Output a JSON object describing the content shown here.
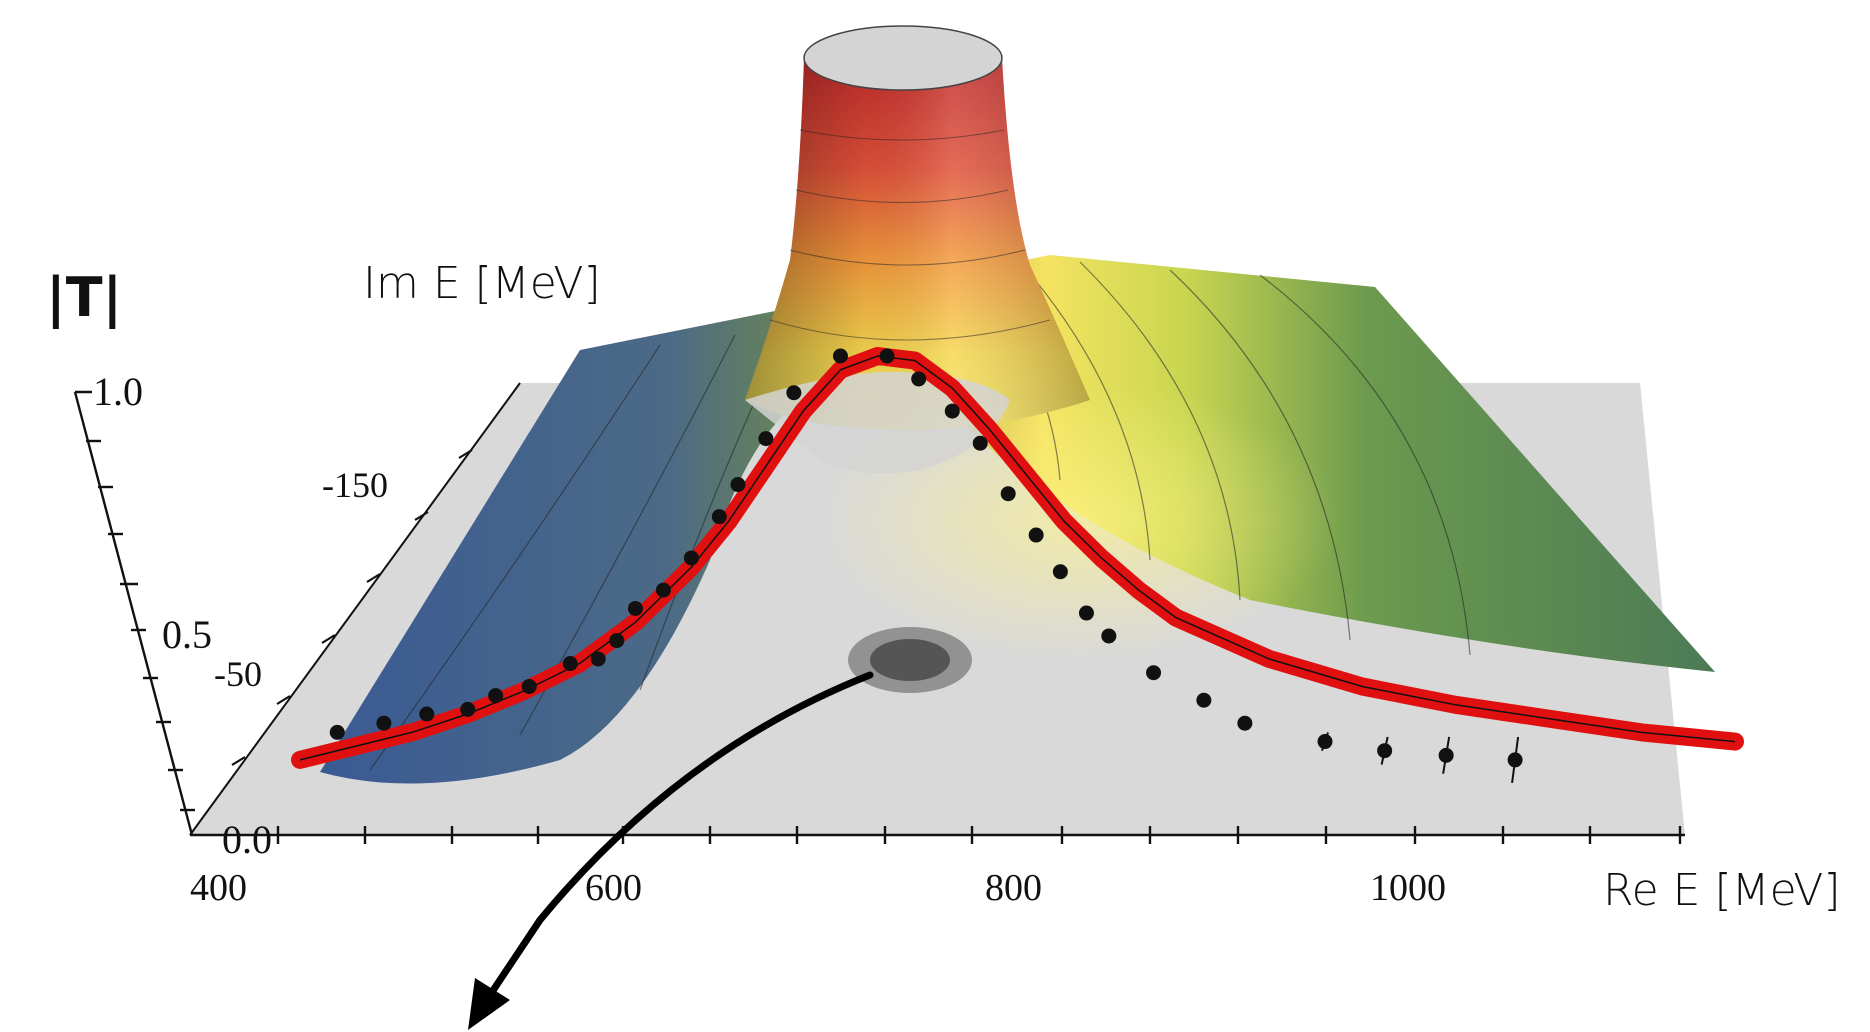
{
  "chart_data": {
    "type": "scatter",
    "title": "",
    "zlabel": "|T|",
    "xlabel": "Re E [MeV]",
    "ylabel": "Im E [MeV]",
    "x_ticks": [
      "400",
      "600",
      "800",
      "1000"
    ],
    "y_ticks": [
      "-150",
      "-50"
    ],
    "z_ticks": [
      "1.0",
      "0.5",
      "0.0"
    ],
    "xlim": [
      400,
      1200
    ],
    "ylim": [
      -200,
      0
    ],
    "zlim": [
      0,
      1
    ],
    "pole": {
      "re": 763,
      "im": -72
    },
    "series": [
      {
        "kind": "data_points",
        "x": [
          450,
          475,
          498,
          520,
          535,
          553,
          575,
          590,
          600,
          610,
          625,
          640,
          655,
          665,
          680,
          695,
          720,
          745,
          762,
          780,
          795,
          810,
          825,
          838,
          852,
          864,
          888,
          915,
          937,
          980,
          1012,
          1045,
          1082
        ],
        "y": [
          0.18,
          0.2,
          0.22,
          0.23,
          0.26,
          0.28,
          0.33,
          0.34,
          0.38,
          0.45,
          0.49,
          0.56,
          0.65,
          0.72,
          0.82,
          0.92,
          1.0,
          1.0,
          0.95,
          0.88,
          0.81,
          0.7,
          0.61,
          0.53,
          0.44,
          0.39,
          0.31,
          0.25,
          0.2,
          0.16,
          0.14,
          0.13,
          0.12
        ],
        "err": [
          0.01,
          0.01,
          0.01,
          0.01,
          0.01,
          0.01,
          0.01,
          0.01,
          0.01,
          0.01,
          0.01,
          0.01,
          0.01,
          0.01,
          0.01,
          0.01,
          0.01,
          0.01,
          0.01,
          0.01,
          0.01,
          0.01,
          0.01,
          0.01,
          0.01,
          0.01,
          0.01,
          0.01,
          0.01,
          0.02,
          0.03,
          0.04,
          0.05
        ]
      },
      {
        "kind": "fit_curve",
        "x": [
          430,
          460,
          490,
          520,
          550,
          580,
          610,
          640,
          660,
          680,
          700,
          720,
          740,
          760,
          780,
          800,
          820,
          840,
          860,
          880,
          900,
          950,
          1000,
          1050,
          1100,
          1150,
          1200
        ],
        "y": [
          0.12,
          0.15,
          0.18,
          0.22,
          0.27,
          0.33,
          0.42,
          0.54,
          0.64,
          0.76,
          0.88,
          0.97,
          1.0,
          0.99,
          0.93,
          0.84,
          0.74,
          0.64,
          0.56,
          0.49,
          0.43,
          0.34,
          0.28,
          0.24,
          0.21,
          0.18,
          0.16
        ]
      }
    ],
    "colors": {
      "fit_curve": "#e01010",
      "data_points": "#111111",
      "surface_low": "#3c5a94",
      "surface_mid": "#f0e25e",
      "surface_high": "#c83232",
      "floor": "#d8d8d8"
    }
  }
}
